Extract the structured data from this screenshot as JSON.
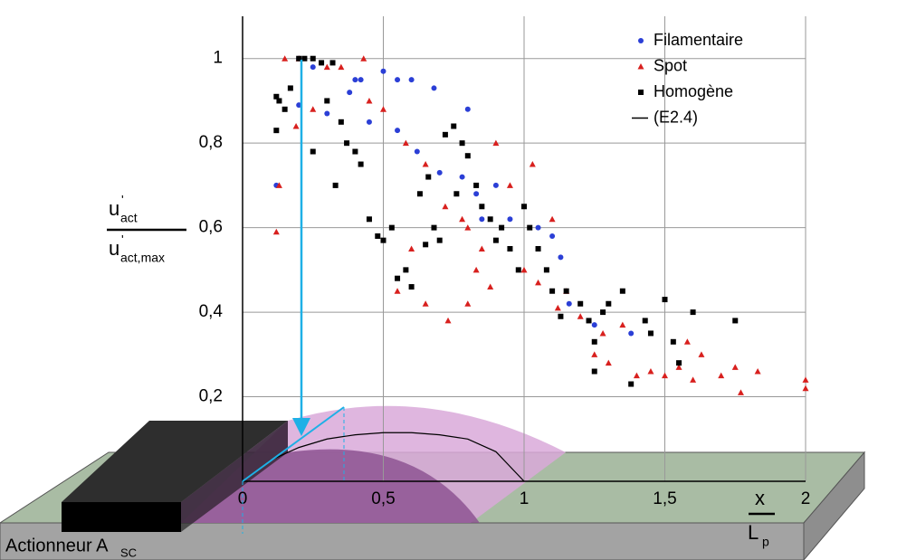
{
  "chart_data": {
    "type": "scatter",
    "ylabel": {
      "numerator": {
        "base": "u",
        "sup": "'",
        "sub": "act"
      },
      "denominator": {
        "base": "u",
        "sup": "'",
        "sub": "act,max"
      }
    },
    "xlabel": {
      "numerator": "x",
      "denominator": {
        "base": "L",
        "sub": "p"
      }
    },
    "annotation": {
      "base": "Actionneur A",
      "sub": "SC"
    },
    "xlim": [
      0,
      2
    ],
    "ylim": [
      0,
      1.1
    ],
    "xticks": [
      0,
      {
        "value": 0.5,
        "label": "0,5"
      },
      1,
      {
        "value": 1.5,
        "label": "1,5"
      },
      2
    ],
    "yticks": [
      {
        "value": 0.2,
        "label": "0,2"
      },
      {
        "value": 0.4,
        "label": "0,4"
      },
      {
        "value": 0.6,
        "label": "0,6"
      },
      {
        "value": 0.8,
        "label": "0,8"
      },
      1
    ],
    "grid": true,
    "legend": "upper right",
    "series": [
      {
        "name": "Filamentaire",
        "color": "#2b3fd6",
        "marker": "circle",
        "x": [
          0.2,
          0.25,
          0.38,
          0.42,
          0.5,
          0.55,
          0.6,
          0.68,
          0.3,
          0.45,
          0.62,
          0.7,
          0.78,
          0.9,
          0.85,
          1.05,
          1.1,
          0.83,
          0.12,
          0.2,
          1.13,
          1.16,
          1.25,
          1.38,
          0.55,
          0.8,
          0.4,
          0.95
        ],
        "values": [
          1.0,
          0.98,
          0.92,
          0.95,
          0.97,
          0.95,
          0.95,
          0.93,
          0.87,
          0.85,
          0.78,
          0.73,
          0.72,
          0.7,
          0.62,
          0.6,
          0.58,
          0.68,
          0.7,
          0.89,
          0.53,
          0.42,
          0.37,
          0.35,
          0.83,
          0.88,
          0.95,
          0.62
        ]
      },
      {
        "name": "Spot",
        "color": "#d8201e",
        "marker": "triangle",
        "x": [
          0.15,
          0.2,
          0.13,
          0.12,
          0.19,
          0.35,
          0.43,
          0.45,
          0.5,
          0.58,
          0.65,
          0.72,
          0.78,
          0.8,
          0.85,
          0.9,
          0.95,
          1.03,
          1.0,
          1.05,
          1.1,
          1.15,
          1.2,
          0.55,
          0.65,
          0.73,
          0.8,
          0.83,
          0.88,
          0.6,
          1.12,
          1.25,
          1.3,
          1.4,
          1.45,
          1.5,
          1.55,
          1.6,
          1.63,
          1.7,
          1.75,
          1.77,
          1.83,
          2.0,
          2.0,
          1.58,
          1.35,
          1.28,
          0.3,
          0.25
        ],
        "values": [
          1.0,
          1.0,
          0.7,
          0.59,
          0.84,
          0.98,
          1.0,
          0.9,
          0.88,
          0.8,
          0.75,
          0.65,
          0.62,
          0.6,
          0.55,
          0.8,
          0.7,
          0.75,
          0.5,
          0.47,
          0.62,
          0.45,
          0.39,
          0.45,
          0.42,
          0.38,
          0.42,
          0.5,
          0.46,
          0.55,
          0.41,
          0.3,
          0.28,
          0.25,
          0.26,
          0.25,
          0.27,
          0.24,
          0.3,
          0.25,
          0.27,
          0.21,
          0.26,
          0.24,
          0.22,
          0.33,
          0.37,
          0.35,
          0.98,
          0.88
        ]
      },
      {
        "name": "Homogène",
        "color": "#000000",
        "marker": "square",
        "x": [
          0.12,
          0.13,
          0.15,
          0.12,
          0.2,
          0.22,
          0.25,
          0.28,
          0.32,
          0.17,
          0.3,
          0.35,
          0.37,
          0.4,
          0.42,
          0.25,
          0.33,
          0.45,
          0.48,
          0.5,
          0.53,
          0.55,
          0.58,
          0.6,
          0.65,
          0.68,
          0.7,
          0.72,
          0.75,
          0.78,
          0.8,
          0.83,
          0.85,
          0.88,
          0.9,
          0.92,
          0.95,
          0.98,
          1.0,
          1.02,
          1.05,
          1.08,
          1.1,
          1.13,
          1.15,
          1.2,
          1.23,
          1.25,
          1.28,
          1.3,
          1.35,
          1.38,
          1.43,
          1.45,
          1.5,
          1.53,
          1.55,
          1.6,
          1.75,
          1.25,
          0.63,
          0.66,
          0.76
        ],
        "values": [
          0.91,
          0.9,
          0.88,
          0.83,
          1.0,
          1.0,
          1.0,
          0.99,
          0.99,
          0.93,
          0.9,
          0.85,
          0.8,
          0.78,
          0.75,
          0.78,
          0.7,
          0.62,
          0.58,
          0.57,
          0.6,
          0.48,
          0.5,
          0.46,
          0.56,
          0.6,
          0.57,
          0.82,
          0.84,
          0.8,
          0.77,
          0.7,
          0.65,
          0.62,
          0.57,
          0.6,
          0.55,
          0.5,
          0.65,
          0.6,
          0.55,
          0.5,
          0.45,
          0.39,
          0.45,
          0.42,
          0.38,
          0.33,
          0.4,
          0.42,
          0.45,
          0.23,
          0.38,
          0.35,
          0.43,
          0.33,
          0.28,
          0.4,
          0.38,
          0.26,
          0.68,
          0.72,
          0.68
        ]
      },
      {
        "name": "(E2.4)",
        "color": "#000000",
        "marker": "line",
        "x": [
          0,
          0.1,
          0.2,
          0.3,
          0.4,
          0.5,
          0.6,
          0.7,
          0.8,
          0.9,
          1.0
        ],
        "values": [
          0,
          0.05,
          0.08,
          0.1,
          0.11,
          0.115,
          0.115,
          0.11,
          0.1,
          0.07,
          0
        ]
      }
    ]
  }
}
